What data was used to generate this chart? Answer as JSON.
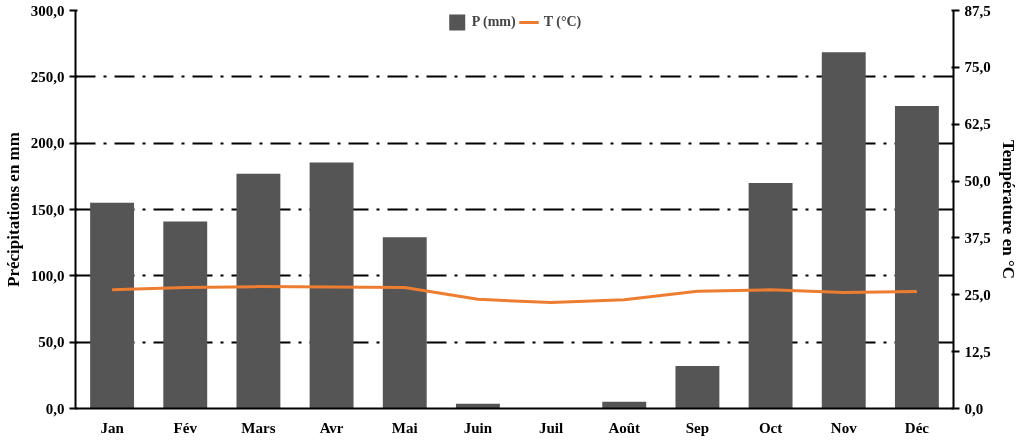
{
  "chart_data": {
    "type": "bar",
    "categories": [
      "Jan",
      "Fév",
      "Mars",
      "Avr",
      "Mai",
      "Juin",
      "Juil",
      "Août",
      "Sep",
      "Oct",
      "Nov",
      "Déc"
    ],
    "ylabel": "Précipitations en mm",
    "y2label": "Température en °C",
    "series": [
      {
        "name": "P (mm)",
        "color": "#555555",
        "values": [
          155,
          141,
          177,
          185.5,
          129,
          3.5,
          0,
          5,
          32,
          170,
          268.5,
          228
        ]
      },
      {
        "name": "T (°C)",
        "type": "line",
        "axis": "y2",
        "color": "#ed7d31",
        "values": [
          26.1,
          26.6,
          26.8,
          26.7,
          26.6,
          24.0,
          23.3,
          23.9,
          25.8,
          26.1,
          25.5,
          25.7
        ]
      }
    ],
    "ylim": [
      0,
      300
    ],
    "yticks": [
      {
        "value": 0,
        "label": "0,0"
      },
      {
        "value": 50,
        "label": "50,0"
      },
      {
        "value": 100,
        "label": "100,0"
      },
      {
        "value": 150,
        "label": "150,0"
      },
      {
        "value": 200,
        "label": "200,0"
      },
      {
        "value": 250,
        "label": "250,0"
      },
      {
        "value": 300,
        "label": "300,0"
      }
    ],
    "y2lim": [
      0,
      87.5
    ],
    "y2ticks": [
      {
        "value": 0,
        "label": "0,0"
      },
      {
        "value": 12.5,
        "label": "12,5"
      },
      {
        "value": 25,
        "label": "25,0"
      },
      {
        "value": 37.5,
        "label": "37,5"
      },
      {
        "value": 50,
        "label": "50,0"
      },
      {
        "value": 62.5,
        "label": "62,5"
      },
      {
        "value": 75,
        "label": "75,0"
      },
      {
        "value": 87.5,
        "label": "87,5"
      }
    ],
    "grid": "y",
    "legend": "top",
    "line_style": "solid",
    "marker": "none"
  }
}
